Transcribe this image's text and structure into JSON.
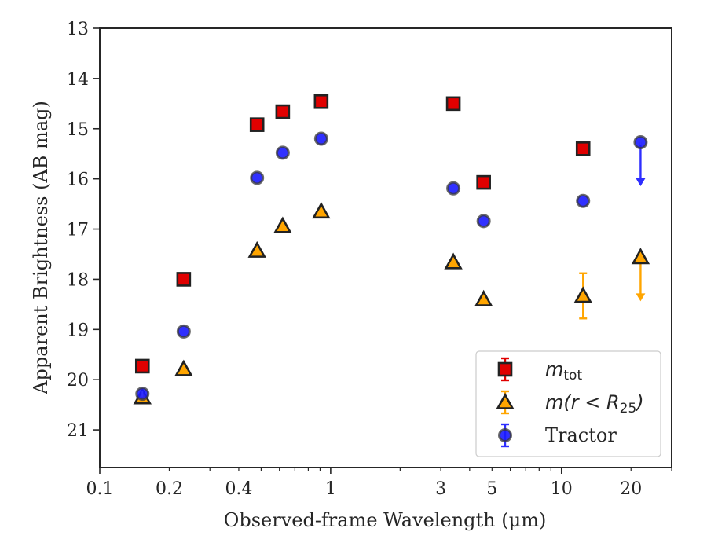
{
  "chart_data": {
    "type": "scatter",
    "xlabel": "Observed-frame Wavelength (μm)",
    "ylabel": "Apparent Brightness (AB mag)",
    "x_scale": "log",
    "xlim": [
      0.1,
      30
    ],
    "ylim": [
      21.75,
      13
    ],
    "y_inverted": true,
    "x_ticks": [
      0.1,
      0.2,
      0.4,
      1,
      3,
      5,
      10,
      20
    ],
    "x_tick_labels": [
      "0.1",
      "0.2",
      "0.4",
      "1",
      "3",
      "5",
      "10",
      "20"
    ],
    "y_ticks": [
      13,
      14,
      15,
      16,
      17,
      18,
      19,
      20,
      21
    ],
    "y_tick_labels": [
      "13",
      "14",
      "15",
      "16",
      "17",
      "18",
      "19",
      "20",
      "21"
    ],
    "grid": false,
    "legend_position": "lower-right",
    "series": [
      {
        "name": "m_tot",
        "legend_main": "m",
        "legend_sub": "tot",
        "marker": "square",
        "color": "#e00000",
        "errcolor": "#e00000",
        "points": [
          {
            "x": 0.153,
            "y": 19.73
          },
          {
            "x": 0.231,
            "y": 18.0
          },
          {
            "x": 0.48,
            "y": 14.92
          },
          {
            "x": 0.62,
            "y": 14.66
          },
          {
            "x": 0.91,
            "y": 14.46
          },
          {
            "x": 3.4,
            "y": 14.5
          },
          {
            "x": 4.6,
            "y": 16.07
          },
          {
            "x": 12.4,
            "y": 15.4
          }
        ]
      },
      {
        "name": "m(r < R_25)",
        "legend_main": "m(r < R",
        "legend_sub": "25",
        "legend_tail": ")",
        "marker": "triangle",
        "color": "#ffa500",
        "errcolor": "#ffa500",
        "points": [
          {
            "x": 0.153,
            "y": 20.35
          },
          {
            "x": 0.231,
            "y": 19.79
          },
          {
            "x": 0.48,
            "y": 17.43
          },
          {
            "x": 0.62,
            "y": 16.94
          },
          {
            "x": 0.91,
            "y": 16.65
          },
          {
            "x": 3.4,
            "y": 17.66
          },
          {
            "x": 4.6,
            "y": 18.4
          },
          {
            "x": 12.4,
            "y": 18.33,
            "err": 0.45
          },
          {
            "x": 22.0,
            "y": 17.56,
            "upper_limit": true
          }
        ]
      },
      {
        "name": "Tractor",
        "legend_main": "Tractor",
        "marker": "circle",
        "color": "#1a1aff",
        "errcolor": "#2e2eff",
        "points": [
          {
            "x": 0.153,
            "y": 20.28
          },
          {
            "x": 0.231,
            "y": 19.04
          },
          {
            "x": 0.48,
            "y": 15.98
          },
          {
            "x": 0.62,
            "y": 15.48
          },
          {
            "x": 0.91,
            "y": 15.2
          },
          {
            "x": 3.4,
            "y": 16.19
          },
          {
            "x": 4.6,
            "y": 16.84
          },
          {
            "x": 12.4,
            "y": 16.44
          },
          {
            "x": 22.0,
            "y": 15.27,
            "upper_limit": true
          }
        ]
      }
    ]
  }
}
